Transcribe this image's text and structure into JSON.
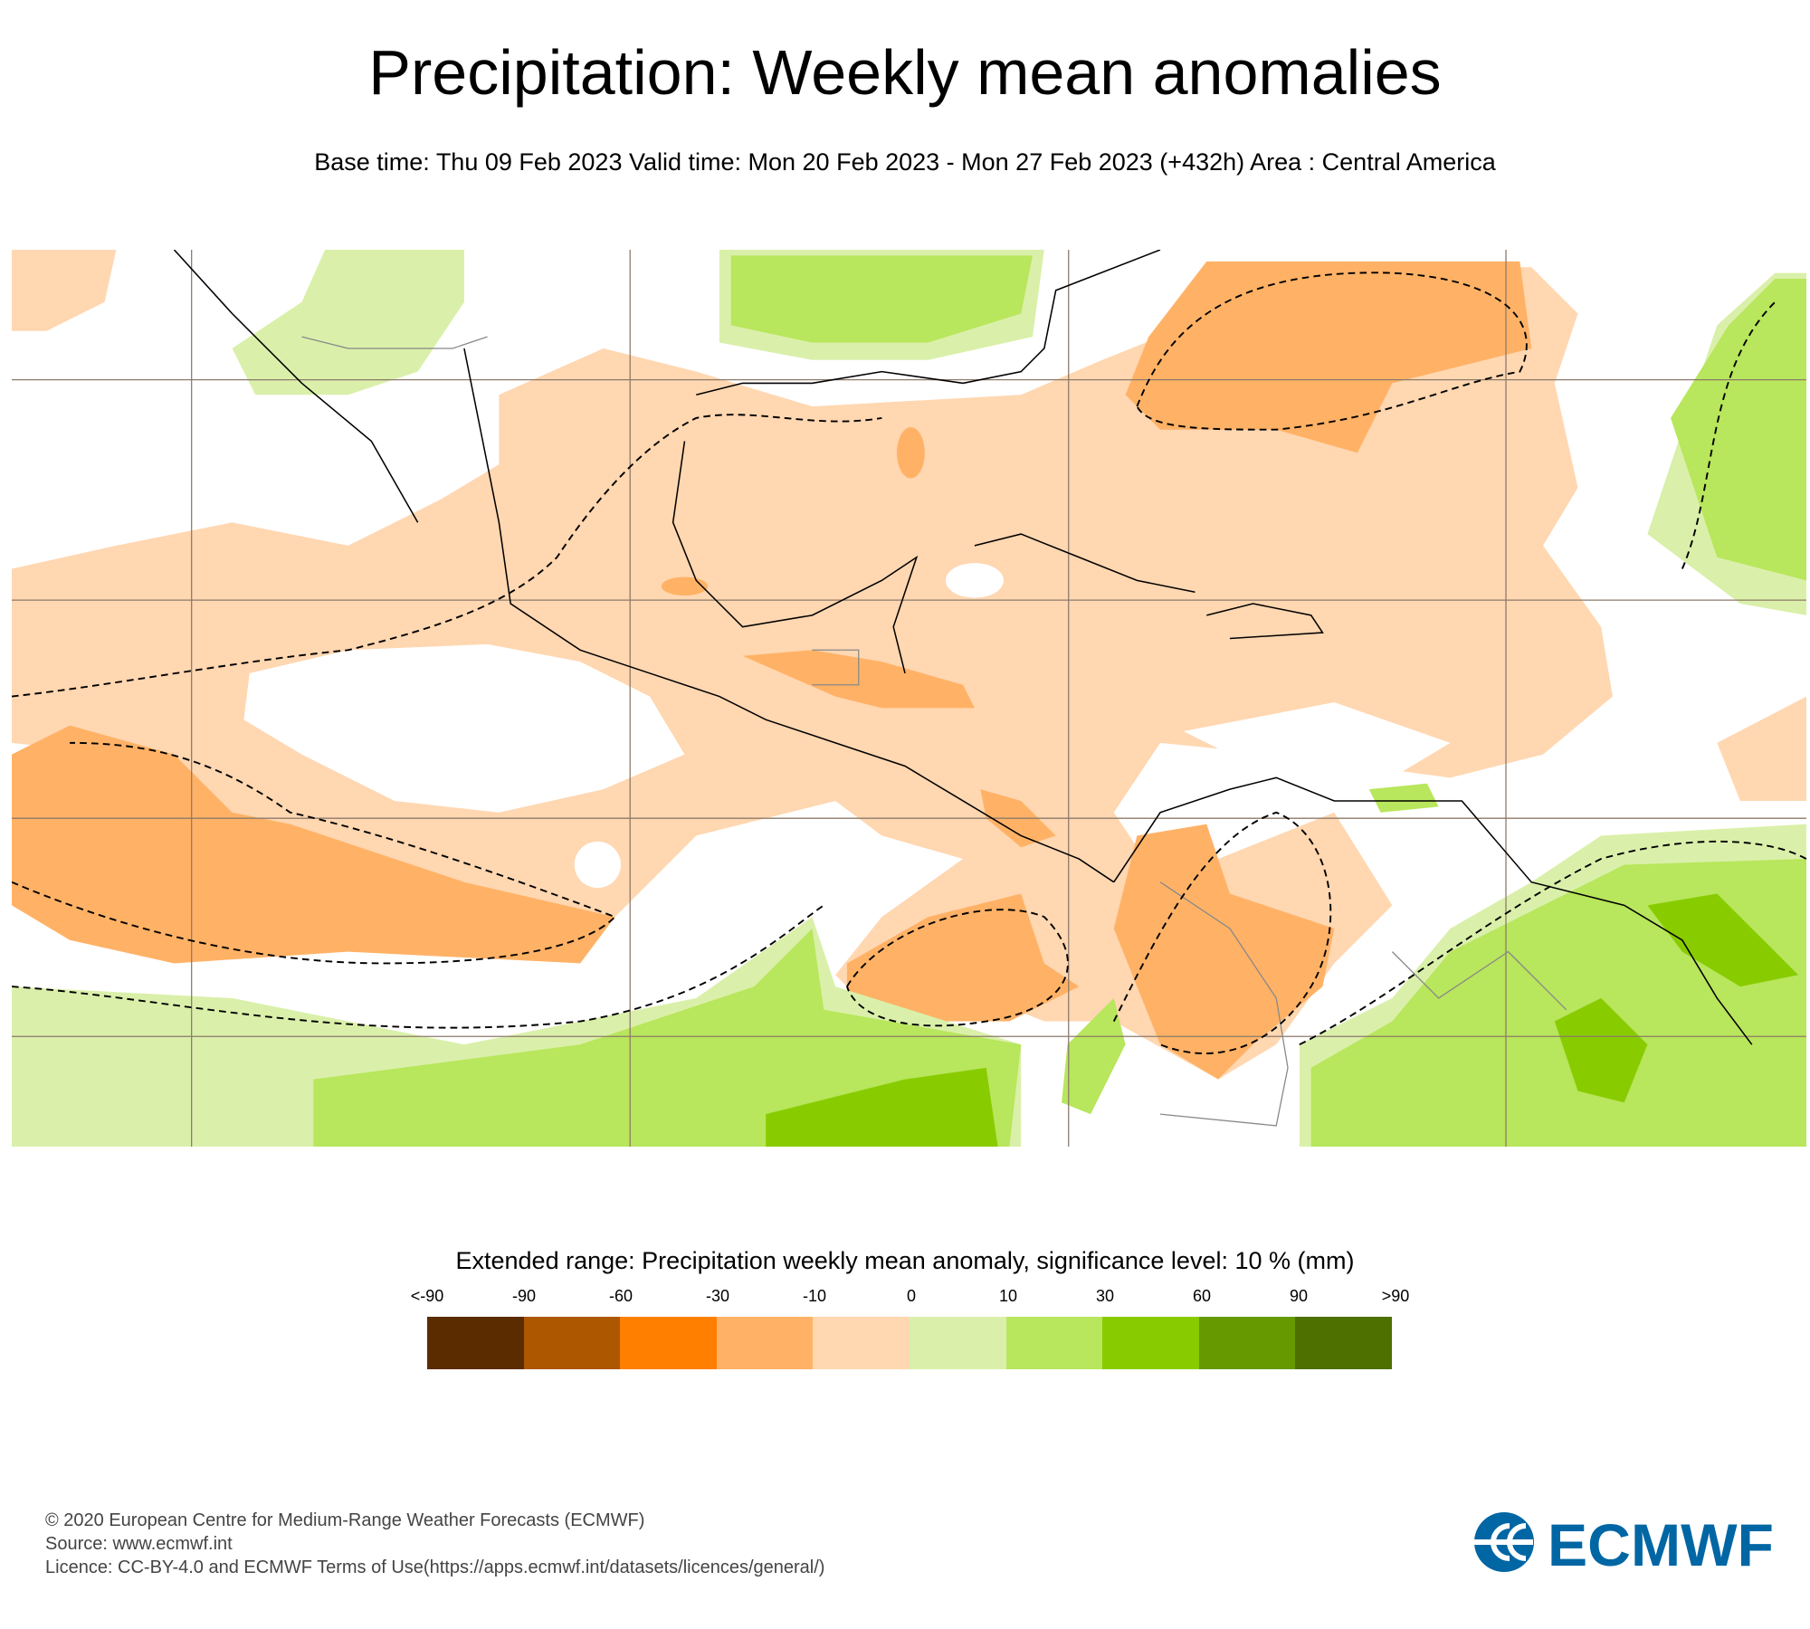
{
  "title": "Precipitation: Weekly mean anomalies",
  "subtitle": "Base time: Thu 09 Feb 2023 Valid time: Mon 20 Feb 2023 - Mon 27 Feb 2023 (+432h) Area : Central America",
  "legend": {
    "title": "Extended range: Precipitation weekly mean anomaly, significance level: 10 % (mm)",
    "labels": [
      "<-90",
      "-90",
      "-60",
      "-30",
      "-10",
      "0",
      "10",
      "30",
      "60",
      "90",
      ">90"
    ],
    "colors": [
      "#5a2c00",
      "#ad5700",
      "#ff7f00",
      "#ffb266",
      "#ffd7b1",
      "#daf0aa",
      "#b8e65c",
      "#88cc00",
      "#669900",
      "#4d7000"
    ]
  },
  "footer": {
    "line1": "© 2020 European Centre for Medium-Range Weather Forecasts (ECMWF)",
    "line2": "Source: www.ecmwf.int",
    "line3": "Licence: CC-BY-4.0 and ECMWF Terms of Use(https://apps.ecmwf.int/datasets/licences/general/)"
  },
  "logo": {
    "text": "ECMWF",
    "color": "#0066a4"
  }
}
